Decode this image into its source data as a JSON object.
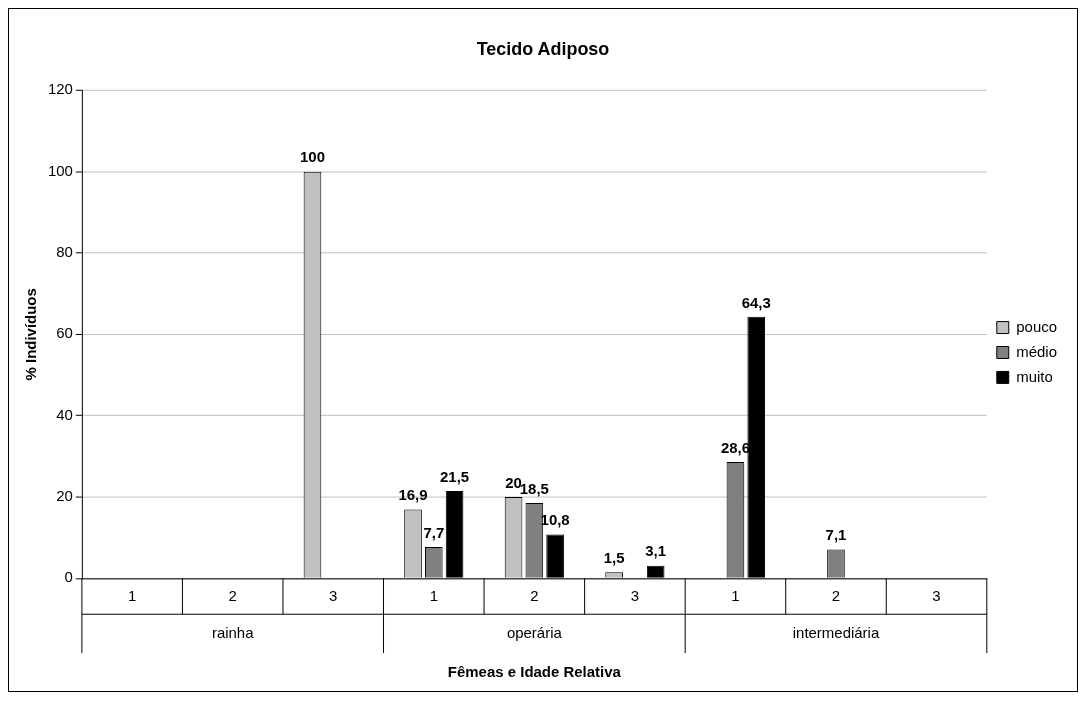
{
  "chart_data": {
    "type": "bar",
    "title": "Tecido Adiposo",
    "xlabel": "Fêmeas e Idade Relativa",
    "ylabel": "% Indivíduos",
    "categories": [
      "1",
      "2",
      "3",
      "1",
      "2",
      "3",
      "1",
      "2",
      "3"
    ],
    "annotations": [
      "rainha",
      "operária",
      "intermediária"
    ],
    "series": [
      {
        "name": "pouco",
        "color": "#c0c0c0",
        "values": [
          null,
          null,
          100,
          16.9,
          20,
          1.5,
          null,
          null,
          null
        ],
        "value_labels": [
          null,
          null,
          "100",
          "16,9",
          "20",
          "1,5",
          null,
          null,
          null
        ]
      },
      {
        "name": "médio",
        "color": "#808080",
        "values": [
          null,
          null,
          null,
          7.7,
          18.5,
          null,
          28.6,
          7.1,
          null
        ],
        "value_labels": [
          null,
          null,
          null,
          "7,7",
          "18,5",
          null,
          "28,6",
          "7,1",
          null
        ]
      },
      {
        "name": "muito",
        "color": "#000000",
        "values": [
          null,
          null,
          null,
          21.5,
          10.8,
          3.1,
          64.3,
          null,
          null
        ],
        "value_labels": [
          null,
          null,
          null,
          "21,5",
          "10,8",
          "3,1",
          "64,3",
          null,
          null
        ]
      }
    ],
    "ylim": [
      0,
      120
    ],
    "yticks": [
      0,
      20,
      40,
      60,
      80,
      100,
      120
    ],
    "grid": "y",
    "legend": "right"
  }
}
